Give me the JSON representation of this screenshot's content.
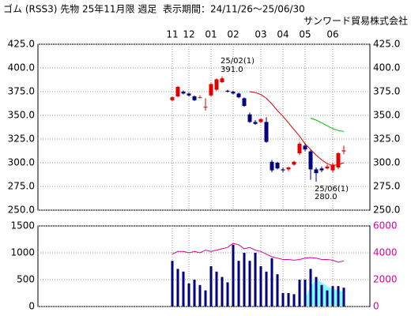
{
  "chart_data": [
    {
      "type": "candlestick",
      "title": "ゴム (RSS3) 先物 25年11月限 週足  表示期間：24/11/26～25/06/30",
      "subtitle": "サンワード貿易株式会社",
      "categories": [
        "11",
        null,
        null,
        "12",
        null,
        null,
        null,
        "01",
        null,
        null,
        null,
        "02",
        null,
        null,
        null,
        null,
        "03",
        null,
        null,
        null,
        "04",
        null,
        null,
        null,
        "05",
        null,
        null,
        null,
        null,
        "06",
        null,
        null
      ],
      "open": [
        366,
        370,
        375,
        373,
        370,
        369,
        359,
        371,
        377,
        385,
        376,
        375,
        373,
        368,
        351,
        343,
        343,
        343,
        301,
        300,
        293,
        293,
        298,
        310,
        318,
        312,
        293,
        294,
        294,
        292,
        295,
        312
      ],
      "high": [
        370,
        381,
        376,
        374,
        371,
        371,
        368,
        384,
        389,
        391,
        377,
        376,
        374,
        369,
        353,
        345,
        347,
        348,
        303,
        301,
        295,
        296,
        302,
        322,
        321,
        314,
        295,
        296,
        298,
        300,
        311,
        318
      ],
      "low": [
        365,
        369,
        372,
        370,
        365,
        368,
        355,
        370,
        376,
        384,
        374,
        372,
        368,
        359,
        342,
        340,
        342,
        321,
        290,
        293,
        290,
        291,
        297,
        308,
        312,
        282,
        280,
        290,
        293,
        290,
        293,
        309
      ],
      "close": [
        369,
        380,
        373,
        371,
        366,
        369,
        359,
        383,
        388,
        389,
        375,
        373,
        369,
        360,
        343,
        341,
        346,
        322,
        292,
        294,
        292,
        295,
        301,
        320,
        314,
        293,
        289,
        292,
        296,
        298,
        310,
        313
      ],
      "up_color": "#e00000",
      "down_color": "#000080",
      "series": [
        {
          "color": "#e00000",
          "values": [
            null,
            null,
            null,
            null,
            null,
            null,
            null,
            null,
            null,
            null,
            null,
            null,
            null,
            null,
            375,
            374,
            372,
            368,
            362,
            355,
            349,
            342,
            335,
            328,
            320,
            314,
            308,
            303,
            299,
            297,
            298,
            300
          ]
        },
        {
          "color": "#00c000",
          "values": [
            null,
            null,
            null,
            null,
            null,
            null,
            null,
            null,
            null,
            null,
            null,
            null,
            null,
            null,
            null,
            null,
            null,
            null,
            null,
            null,
            null,
            null,
            null,
            null,
            null,
            347,
            345,
            342,
            339,
            336,
            334,
            333
          ]
        }
      ],
      "annotations": [
        {
          "of": "high",
          "value": 391,
          "label": "25/02(1)",
          "value_label": "391.0"
        },
        {
          "of": "low",
          "value": 280,
          "label": "25/06(1)",
          "value_label": "280.0"
        }
      ],
      "ylim": [
        250,
        425
      ],
      "yticks": [
        {
          "value": 250,
          "label": "250.0"
        },
        {
          "value": 275,
          "label": "275.0"
        },
        {
          "value": 300,
          "label": "300.0"
        },
        {
          "value": 325,
          "label": "325.0"
        },
        {
          "value": 350,
          "label": "350.0"
        },
        {
          "value": 375,
          "label": "375.0"
        },
        {
          "value": 400,
          "label": "400.0"
        },
        {
          "value": 425,
          "label": "425.0"
        }
      ],
      "grid": true
    },
    {
      "type": "bar",
      "series": [
        {
          "color": "#000080",
          "values": [
            850,
            700,
            650,
            430,
            500,
            400,
            300,
            750,
            650,
            550,
            450,
            1150,
            850,
            1000,
            850,
            1000,
            750,
            650,
            900,
            600,
            250,
            250,
            230,
            500,
            500,
            700,
            550,
            400,
            300,
            380,
            380,
            350
          ]
        },
        {
          "color": "#e000a0",
          "axis": "y2",
          "values": [
            3900,
            4100,
            4100,
            4000,
            4100,
            4000,
            4200,
            4100,
            4200,
            4300,
            4400,
            4700,
            4600,
            4300,
            4400,
            4200,
            4100,
            3900,
            3700,
            3600,
            3500,
            3500,
            3450,
            3500,
            3600,
            3650,
            3600,
            3500,
            3500,
            3450,
            3300,
            3400
          ]
        },
        {
          "color": "#80ffff",
          "axis": "y2",
          "values": [
            null,
            null,
            null,
            null,
            null,
            null,
            null,
            null,
            null,
            null,
            null,
            null,
            null,
            null,
            null,
            null,
            null,
            null,
            null,
            null,
            null,
            null,
            null,
            null,
            600,
            1500,
            2000,
            1800,
            1500,
            1300,
            1200,
            1100
          ]
        }
      ],
      "ylim": [
        0,
        1500
      ],
      "yticks": [
        0,
        500,
        1000,
        1500
      ],
      "y2lim": [
        0,
        6000
      ],
      "y2ticks": [
        0,
        2000,
        4000,
        6000
      ],
      "y2_color": "#e000a0",
      "grid": true
    }
  ]
}
